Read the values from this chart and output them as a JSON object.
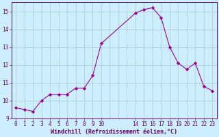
{
  "x": [
    0,
    1,
    2,
    3,
    4,
    5,
    6,
    7,
    8,
    9,
    10,
    14,
    15,
    16,
    17,
    18,
    19,
    20,
    21,
    22,
    23
  ],
  "y": [
    9.6,
    9.5,
    9.4,
    10.0,
    10.35,
    10.35,
    10.35,
    10.7,
    10.7,
    11.4,
    13.2,
    14.9,
    15.1,
    15.2,
    14.65,
    13.0,
    12.1,
    11.75,
    12.1,
    10.8,
    10.55
  ],
  "bg_color": "#cceeff",
  "line_color": "#990099",
  "marker_color": "#990099",
  "grid_color": "#aacccc",
  "xlabel": "Windchill (Refroidissement éolien,°C)",
  "xlabel_color": "#660066",
  "tick_color": "#660066",
  "spine_color": "#660066",
  "ylim": [
    9,
    15.5
  ],
  "xlim": [
    -0.5,
    23.5
  ],
  "yticks": [
    9,
    10,
    11,
    12,
    13,
    14,
    15
  ],
  "xticks": [
    0,
    1,
    2,
    3,
    4,
    5,
    6,
    7,
    8,
    9,
    10,
    14,
    15,
    16,
    17,
    18,
    19,
    20,
    21,
    22,
    23
  ],
  "xlabel_fontsize": 6.0,
  "tick_fontsize": 5.5
}
